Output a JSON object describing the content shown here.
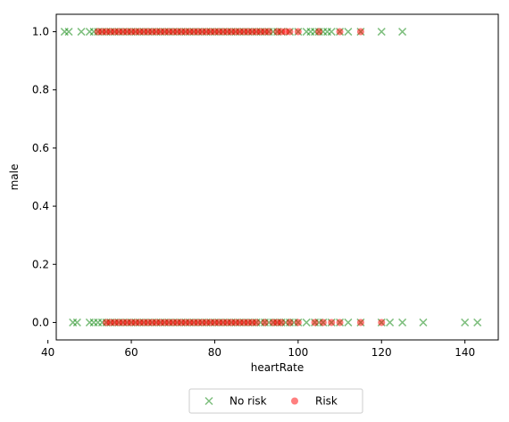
{
  "chart_data": {
    "type": "scatter",
    "xlabel": "heartRate",
    "ylabel": "male",
    "xlim": [
      42,
      148
    ],
    "ylim": [
      -0.06,
      1.06
    ],
    "xticks": [
      40,
      60,
      80,
      100,
      120,
      140
    ],
    "yticks": [
      0.0,
      0.2,
      0.4,
      0.6,
      0.8,
      1.0
    ],
    "xtick_labels": [
      "40",
      "60",
      "80",
      "100",
      "120",
      "140"
    ],
    "ytick_labels": [
      "0.0",
      "0.2",
      "0.4",
      "0.6",
      "0.8",
      "1.0"
    ],
    "grid": false,
    "legend": {
      "placement": "bottom-center",
      "ncol": 2
    },
    "series": [
      {
        "name": "No risk",
        "marker": "x",
        "color": "#008000",
        "alpha": 0.5,
        "points": [
          [
            44,
            1
          ],
          [
            45,
            1
          ],
          [
            48,
            1
          ],
          [
            50,
            1
          ],
          [
            51,
            1
          ],
          [
            52,
            1
          ],
          [
            53,
            1
          ],
          [
            54,
            1
          ],
          [
            55,
            1
          ],
          [
            56,
            1
          ],
          [
            57,
            1
          ],
          [
            58,
            1
          ],
          [
            59,
            1
          ],
          [
            60,
            1
          ],
          [
            61,
            1
          ],
          [
            62,
            1
          ],
          [
            63,
            1
          ],
          [
            64,
            1
          ],
          [
            65,
            1
          ],
          [
            66,
            1
          ],
          [
            67,
            1
          ],
          [
            68,
            1
          ],
          [
            69,
            1
          ],
          [
            70,
            1
          ],
          [
            71,
            1
          ],
          [
            72,
            1
          ],
          [
            73,
            1
          ],
          [
            74,
            1
          ],
          [
            75,
            1
          ],
          [
            76,
            1
          ],
          [
            77,
            1
          ],
          [
            78,
            1
          ],
          [
            79,
            1
          ],
          [
            80,
            1
          ],
          [
            81,
            1
          ],
          [
            82,
            1
          ],
          [
            83,
            1
          ],
          [
            84,
            1
          ],
          [
            85,
            1
          ],
          [
            86,
            1
          ],
          [
            87,
            1
          ],
          [
            88,
            1
          ],
          [
            89,
            1
          ],
          [
            90,
            1
          ],
          [
            91,
            1
          ],
          [
            92,
            1
          ],
          [
            93,
            1
          ],
          [
            94,
            1
          ],
          [
            95,
            1
          ],
          [
            96,
            1
          ],
          [
            98,
            1
          ],
          [
            100,
            1
          ],
          [
            102,
            1
          ],
          [
            103,
            1
          ],
          [
            104,
            1
          ],
          [
            105,
            1
          ],
          [
            106,
            1
          ],
          [
            107,
            1
          ],
          [
            108,
            1
          ],
          [
            110,
            1
          ],
          [
            112,
            1
          ],
          [
            115,
            1
          ],
          [
            120,
            1
          ],
          [
            125,
            1
          ],
          [
            46,
            0
          ],
          [
            47,
            0
          ],
          [
            50,
            0
          ],
          [
            51,
            0
          ],
          [
            52,
            0
          ],
          [
            53,
            0
          ],
          [
            54,
            0
          ],
          [
            55,
            0
          ],
          [
            56,
            0
          ],
          [
            57,
            0
          ],
          [
            58,
            0
          ],
          [
            59,
            0
          ],
          [
            60,
            0
          ],
          [
            61,
            0
          ],
          [
            62,
            0
          ],
          [
            63,
            0
          ],
          [
            64,
            0
          ],
          [
            65,
            0
          ],
          [
            66,
            0
          ],
          [
            67,
            0
          ],
          [
            68,
            0
          ],
          [
            69,
            0
          ],
          [
            70,
            0
          ],
          [
            71,
            0
          ],
          [
            72,
            0
          ],
          [
            73,
            0
          ],
          [
            74,
            0
          ],
          [
            75,
            0
          ],
          [
            76,
            0
          ],
          [
            77,
            0
          ],
          [
            78,
            0
          ],
          [
            79,
            0
          ],
          [
            80,
            0
          ],
          [
            81,
            0
          ],
          [
            82,
            0
          ],
          [
            83,
            0
          ],
          [
            84,
            0
          ],
          [
            85,
            0
          ],
          [
            86,
            0
          ],
          [
            87,
            0
          ],
          [
            88,
            0
          ],
          [
            89,
            0
          ],
          [
            90,
            0
          ],
          [
            91,
            0
          ],
          [
            92,
            0
          ],
          [
            93,
            0
          ],
          [
            94,
            0
          ],
          [
            95,
            0
          ],
          [
            96,
            0
          ],
          [
            97,
            0
          ],
          [
            98,
            0
          ],
          [
            99,
            0
          ],
          [
            100,
            0
          ],
          [
            102,
            0
          ],
          [
            104,
            0
          ],
          [
            105,
            0
          ],
          [
            106,
            0
          ],
          [
            108,
            0
          ],
          [
            110,
            0
          ],
          [
            112,
            0
          ],
          [
            115,
            0
          ],
          [
            120,
            0
          ],
          [
            122,
            0
          ],
          [
            125,
            0
          ],
          [
            130,
            0
          ],
          [
            140,
            0
          ],
          [
            143,
            0
          ]
        ]
      },
      {
        "name": "Risk",
        "marker": "o",
        "color": "#ff0000",
        "alpha": 0.5,
        "points": [
          [
            52,
            1
          ],
          [
            53,
            1
          ],
          [
            54,
            1
          ],
          [
            55,
            1
          ],
          [
            56,
            1
          ],
          [
            57,
            1
          ],
          [
            58,
            1
          ],
          [
            59,
            1
          ],
          [
            60,
            1
          ],
          [
            61,
            1
          ],
          [
            62,
            1
          ],
          [
            63,
            1
          ],
          [
            64,
            1
          ],
          [
            65,
            1
          ],
          [
            66,
            1
          ],
          [
            67,
            1
          ],
          [
            68,
            1
          ],
          [
            69,
            1
          ],
          [
            70,
            1
          ],
          [
            71,
            1
          ],
          [
            72,
            1
          ],
          [
            73,
            1
          ],
          [
            74,
            1
          ],
          [
            75,
            1
          ],
          [
            76,
            1
          ],
          [
            77,
            1
          ],
          [
            78,
            1
          ],
          [
            79,
            1
          ],
          [
            80,
            1
          ],
          [
            81,
            1
          ],
          [
            82,
            1
          ],
          [
            83,
            1
          ],
          [
            84,
            1
          ],
          [
            85,
            1
          ],
          [
            86,
            1
          ],
          [
            87,
            1
          ],
          [
            88,
            1
          ],
          [
            89,
            1
          ],
          [
            90,
            1
          ],
          [
            91,
            1
          ],
          [
            92,
            1
          ],
          [
            93,
            1
          ],
          [
            95,
            1
          ],
          [
            96,
            1
          ],
          [
            97,
            1
          ],
          [
            98,
            1
          ],
          [
            100,
            1
          ],
          [
            105,
            1
          ],
          [
            110,
            1
          ],
          [
            115,
            1
          ],
          [
            54,
            0
          ],
          [
            55,
            0
          ],
          [
            56,
            0
          ],
          [
            57,
            0
          ],
          [
            58,
            0
          ],
          [
            59,
            0
          ],
          [
            60,
            0
          ],
          [
            61,
            0
          ],
          [
            62,
            0
          ],
          [
            63,
            0
          ],
          [
            64,
            0
          ],
          [
            65,
            0
          ],
          [
            66,
            0
          ],
          [
            67,
            0
          ],
          [
            68,
            0
          ],
          [
            69,
            0
          ],
          [
            70,
            0
          ],
          [
            71,
            0
          ],
          [
            72,
            0
          ],
          [
            73,
            0
          ],
          [
            74,
            0
          ],
          [
            75,
            0
          ],
          [
            76,
            0
          ],
          [
            77,
            0
          ],
          [
            78,
            0
          ],
          [
            79,
            0
          ],
          [
            80,
            0
          ],
          [
            81,
            0
          ],
          [
            82,
            0
          ],
          [
            83,
            0
          ],
          [
            84,
            0
          ],
          [
            85,
            0
          ],
          [
            86,
            0
          ],
          [
            87,
            0
          ],
          [
            88,
            0
          ],
          [
            89,
            0
          ],
          [
            90,
            0
          ],
          [
            92,
            0
          ],
          [
            94,
            0
          ],
          [
            95,
            0
          ],
          [
            96,
            0
          ],
          [
            98,
            0
          ],
          [
            100,
            0
          ],
          [
            104,
            0
          ],
          [
            106,
            0
          ],
          [
            108,
            0
          ],
          [
            110,
            0
          ],
          [
            115,
            0
          ],
          [
            120,
            0
          ]
        ]
      }
    ]
  }
}
